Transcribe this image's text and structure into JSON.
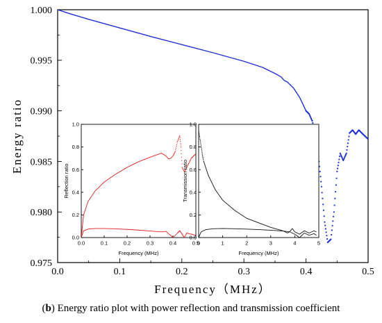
{
  "caption": {
    "letter": "b",
    "text": "Energy ratio plot with power reflection and transmission coefficient"
  },
  "colors": {
    "main_series": "#1f2fd6",
    "reflection_series": "#e0201e",
    "transmission_series": "#111111"
  },
  "chart_data": [
    {
      "id": "main",
      "type": "line",
      "title": "",
      "xlabel": "Frequency（MHz）",
      "ylabel": "Energy ratio",
      "xlim": [
        0.0,
        0.5
      ],
      "ylim": [
        0.975,
        1.0
      ],
      "xticks": [
        "0.0",
        "0.1",
        "0.2",
        "0.3",
        "0.4",
        "0.5"
      ],
      "yticks": [
        "0.975",
        "0.980",
        "0.985",
        "0.990",
        "0.995",
        "1.000"
      ],
      "grid": false,
      "series": [
        {
          "style": "solid",
          "x": [
            0.0,
            0.02,
            0.05,
            0.1,
            0.15,
            0.2,
            0.25,
            0.3,
            0.33,
            0.35,
            0.36,
            0.365,
            0.37,
            0.38,
            0.39,
            0.4
          ],
          "y": [
            1.0,
            0.9996,
            0.99905,
            0.9982,
            0.99735,
            0.99655,
            0.99575,
            0.9949,
            0.9943,
            0.9937,
            0.99335,
            0.993,
            0.99285,
            0.99225,
            0.9913,
            0.99
          ]
        },
        {
          "style": "dotted",
          "x": [
            0.4,
            0.405,
            0.41,
            0.415,
            0.42,
            0.425,
            0.43,
            0.435,
            0.44,
            0.445,
            0.45,
            0.455,
            0.46,
            0.465,
            0.47,
            0.475,
            0.48,
            0.485,
            0.49,
            0.495,
            0.5
          ],
          "y": [
            0.99,
            0.9897,
            0.989,
            0.9878,
            0.9855,
            0.9825,
            0.979,
            0.977,
            0.9773,
            0.98,
            0.984,
            0.9858,
            0.9851,
            0.9858,
            0.9878,
            0.9881,
            0.9877,
            0.9881,
            0.9878,
            0.9875,
            0.9872
          ]
        }
      ]
    },
    {
      "id": "inset-reflection",
      "type": "line",
      "xlabel": "Frequency (MHz)",
      "ylabel": "Reflection ratio",
      "xlim": [
        0.0,
        0.5
      ],
      "ylim": [
        0.0,
        1.0
      ],
      "xticks": [
        "0.0",
        "0.1",
        "0.2",
        "0.3",
        "0.4",
        "0.5"
      ],
      "yticks": [
        "0.0",
        "0.2",
        "0.4",
        "0.6",
        "0.8",
        "1.0"
      ],
      "series": [
        {
          "style": "solid",
          "x": [
            0.0,
            0.01,
            0.03,
            0.06,
            0.1,
            0.15,
            0.2,
            0.25,
            0.3,
            0.35,
            0.37,
            0.38,
            0.39,
            0.4,
            0.41
          ],
          "y": [
            0.0,
            0.2,
            0.32,
            0.41,
            0.49,
            0.56,
            0.62,
            0.67,
            0.71,
            0.745,
            0.72,
            0.695,
            0.7,
            0.72,
            0.76
          ]
        },
        {
          "style": "dotted",
          "x": [
            0.41,
            0.42,
            0.43,
            0.435,
            0.44,
            0.45,
            0.46,
            0.47,
            0.48,
            0.49,
            0.5
          ],
          "y": [
            0.76,
            0.85,
            0.9,
            0.8,
            0.62,
            0.58,
            0.62,
            0.66,
            0.7,
            0.72,
            0.74
          ]
        },
        {
          "style": "solid",
          "x": [
            0.0,
            0.01,
            0.03,
            0.06,
            0.1,
            0.15,
            0.2,
            0.25,
            0.3,
            0.35,
            0.37,
            0.38,
            0.39,
            0.4
          ],
          "y": [
            0.0,
            0.06,
            0.075,
            0.08,
            0.08,
            0.077,
            0.072,
            0.066,
            0.058,
            0.05,
            0.055,
            0.035,
            0.02,
            0.0
          ]
        },
        {
          "style": "dotted",
          "x": [
            0.4,
            0.42,
            0.43,
            0.44,
            0.45,
            0.46,
            0.48,
            0.5
          ],
          "y": [
            0.0,
            0.04,
            0.06,
            0.03,
            0.0,
            0.04,
            0.03,
            0.02
          ]
        }
      ]
    },
    {
      "id": "inset-transmission",
      "type": "line",
      "xlabel": "Frequency (MHz)",
      "ylabel": "Transmission ratio",
      "xlim": [
        0.0,
        5.0
      ],
      "ylim": [
        0.0,
        1.0
      ],
      "xticks": [
        "0",
        "1",
        "2",
        "3",
        "4",
        "5"
      ],
      "yticks": [
        "0.0",
        "0.2",
        "0.4",
        "0.6",
        "0.8",
        "1.0"
      ],
      "series": [
        {
          "style": "dotted",
          "x": [
            0.0,
            0.05,
            0.1,
            0.15,
            0.2
          ],
          "y": [
            0.95,
            0.88,
            0.81,
            0.74,
            0.68
          ]
        },
        {
          "style": "solid",
          "x": [
            0.2,
            0.4,
            0.7,
            1.0,
            1.5,
            2.0,
            2.5,
            3.0,
            3.5,
            3.7,
            3.8,
            3.9,
            4.0,
            4.2,
            4.4,
            4.6,
            4.8,
            4.9
          ],
          "y": [
            0.68,
            0.55,
            0.42,
            0.33,
            0.24,
            0.17,
            0.13,
            0.09,
            0.06,
            0.04,
            0.055,
            0.08,
            0.05,
            0.03,
            0.06,
            0.04,
            0.06,
            0.05
          ]
        },
        {
          "style": "solid",
          "x": [
            0.0,
            0.1,
            0.3,
            0.6,
            1.0,
            1.5,
            2.0,
            2.5,
            3.0,
            3.5,
            3.8,
            4.0,
            4.2,
            4.4,
            4.6,
            4.8,
            4.9
          ],
          "y": [
            0.0,
            0.05,
            0.07,
            0.078,
            0.08,
            0.078,
            0.075,
            0.07,
            0.065,
            0.058,
            0.05,
            0.03,
            0.0,
            0.04,
            0.02,
            0.035,
            0.02
          ]
        }
      ]
    }
  ]
}
